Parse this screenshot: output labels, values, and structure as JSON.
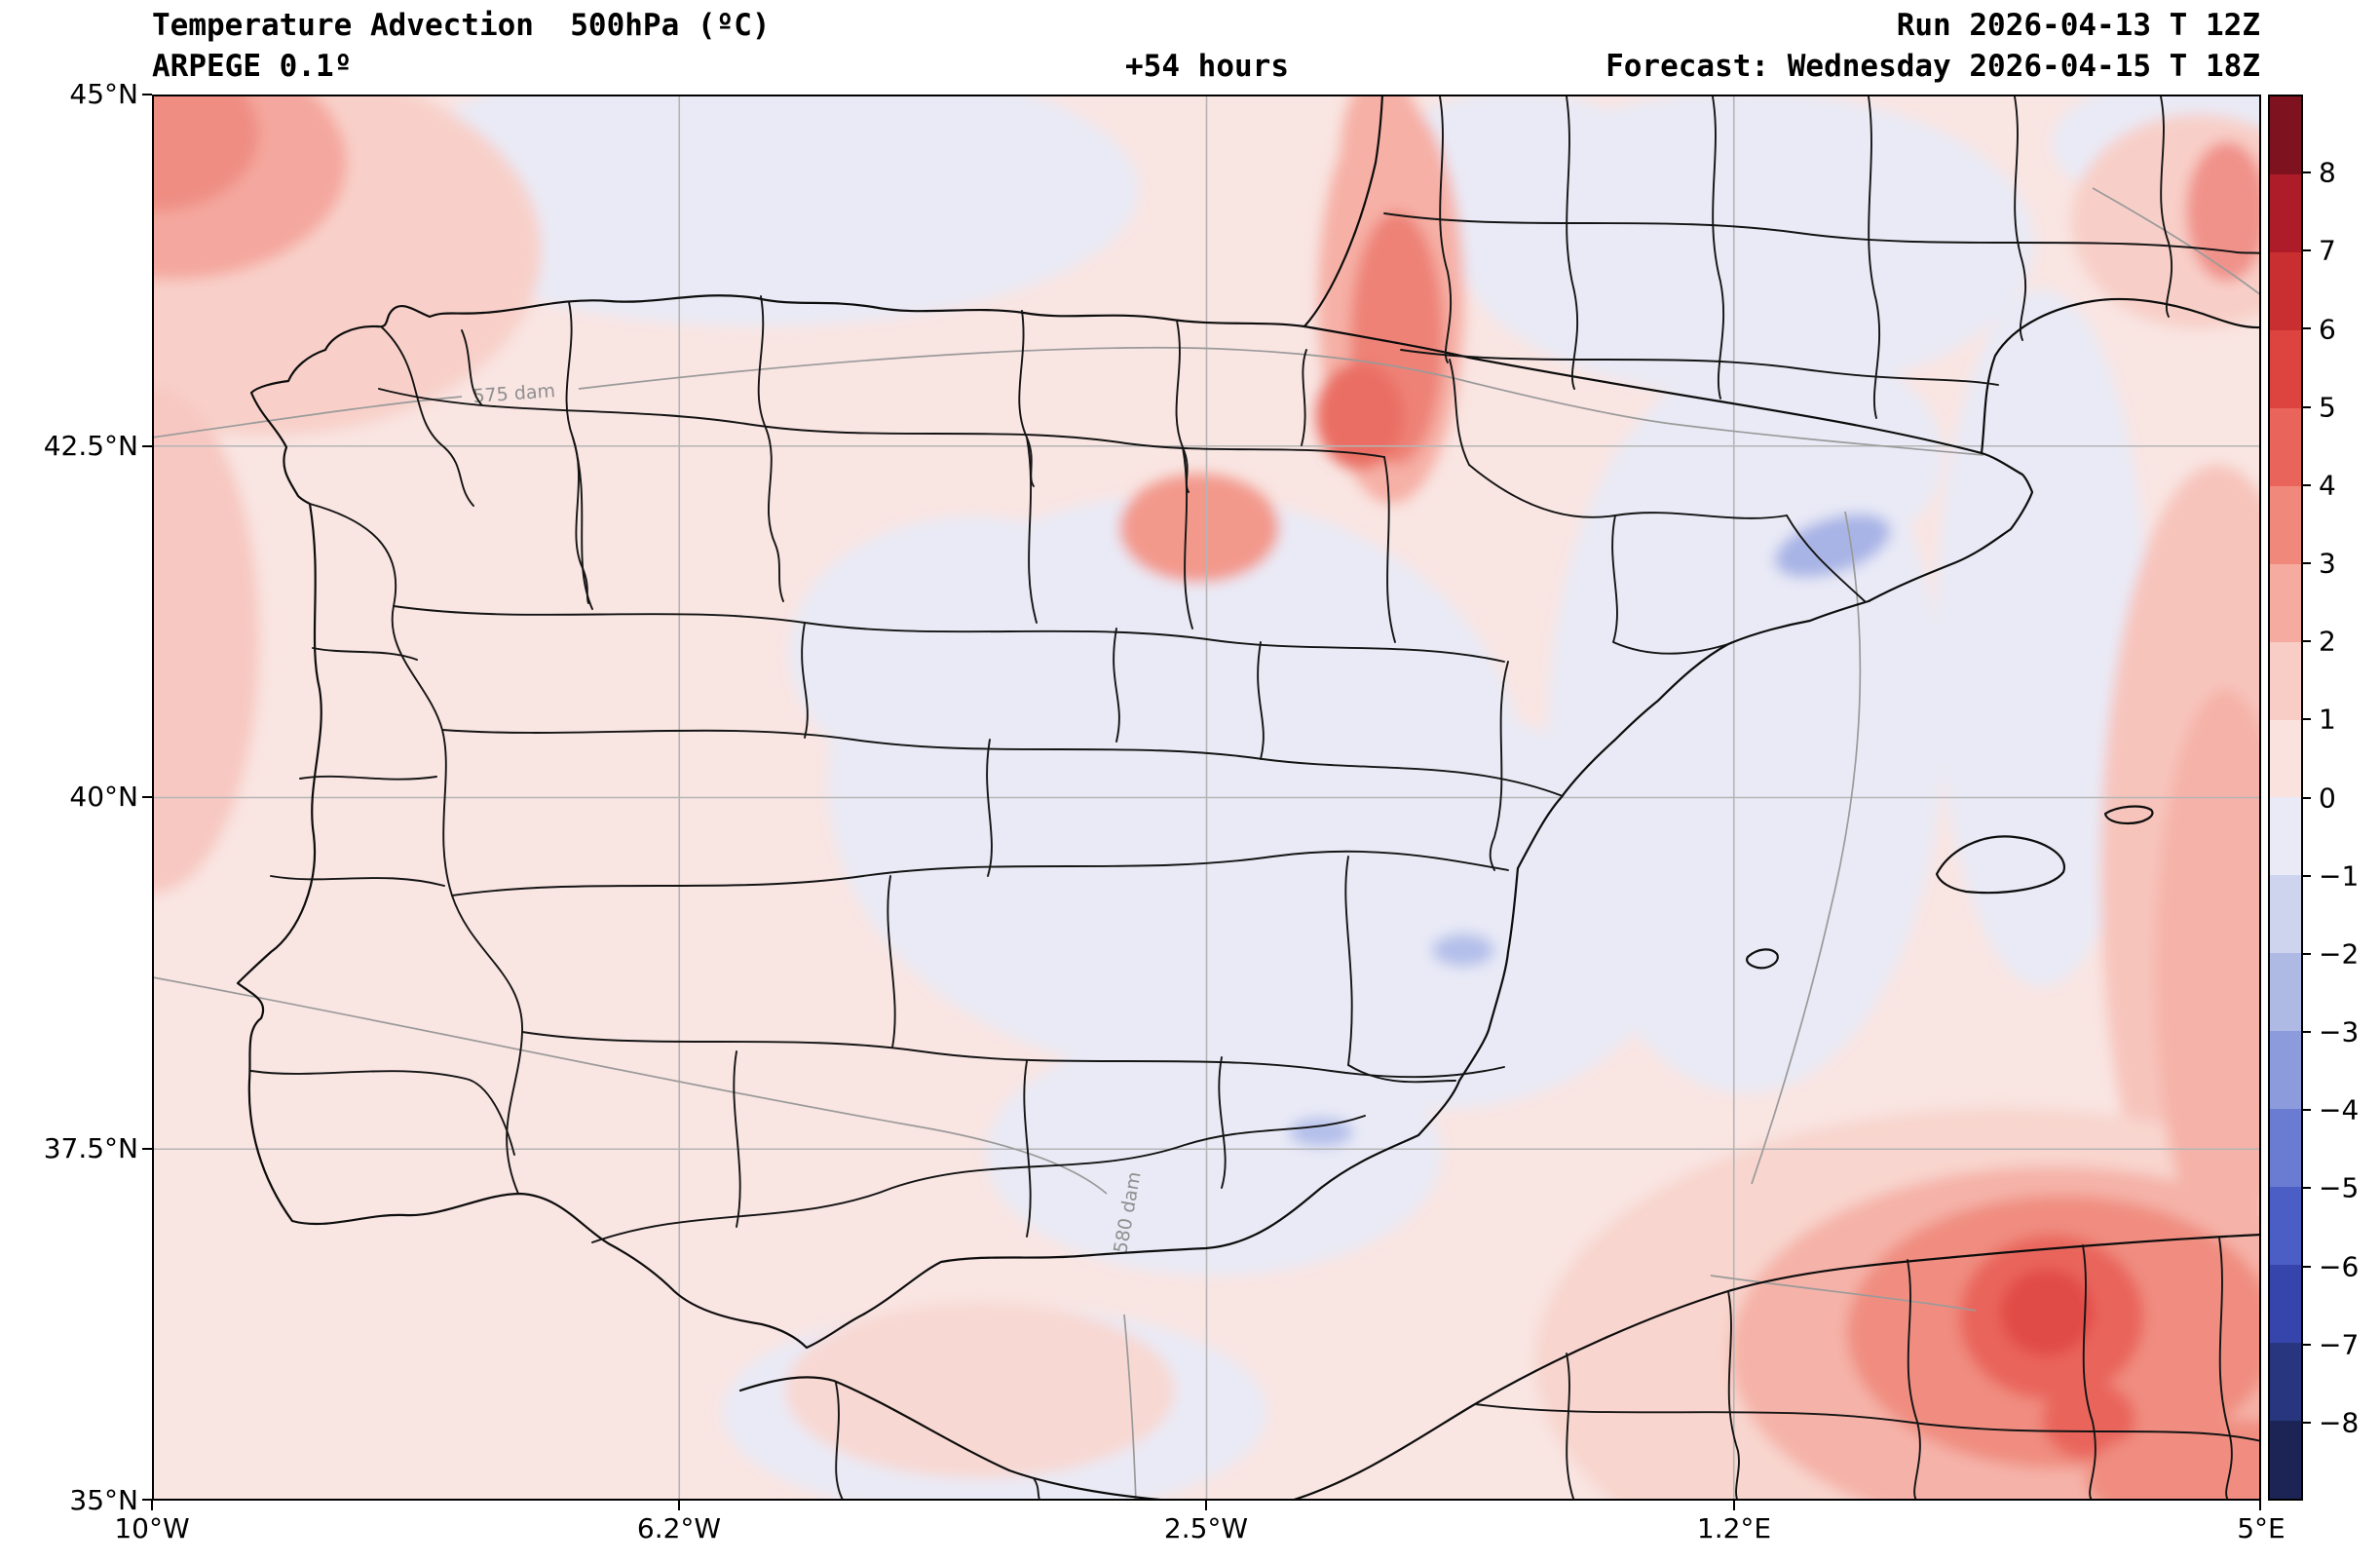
{
  "header": {
    "title": "Temperature Advection  500hPa (ºC)",
    "model": "ARPEGE 0.1º",
    "lead_time": "+54 hours",
    "run": "Run 2026-04-13 T 12Z",
    "forecast": "Forecast: Wednesday 2026-04-15 T 18Z"
  },
  "axes": {
    "y": {
      "labels": [
        "45°N",
        "42.5°N",
        "40°N",
        "37.5°N",
        "35°N"
      ]
    },
    "x": {
      "labels": [
        "10°W",
        "6.2°W",
        "2.5°W",
        "1.2°E",
        "5°E"
      ]
    }
  },
  "map": {
    "annotations": [
      "575 dam",
      "580 dam"
    ],
    "base_fill_color": "#f9e5e2",
    "cool_fill_color": "#e9eaf6"
  },
  "colorbar": {
    "units": "ºC",
    "ticks": [
      "8",
      "7",
      "6",
      "5",
      "4",
      "3",
      "2",
      "1",
      "0",
      "−1",
      "−2",
      "−3",
      "−4",
      "−5",
      "−6",
      "−7",
      "−8"
    ],
    "band_colors": [
      "#7f121f",
      "#ad1c28",
      "#c92e31",
      "#de443f",
      "#e9655c",
      "#f0897b",
      "#f5ab9f",
      "#f8cdc6",
      "#fae3df",
      "#e9eaf6",
      "#cfd4ee",
      "#aebae4",
      "#8c9bdb",
      "#6a7cd1",
      "#4a5ec5",
      "#3545ab",
      "#283680",
      "#1b2455"
    ]
  }
}
